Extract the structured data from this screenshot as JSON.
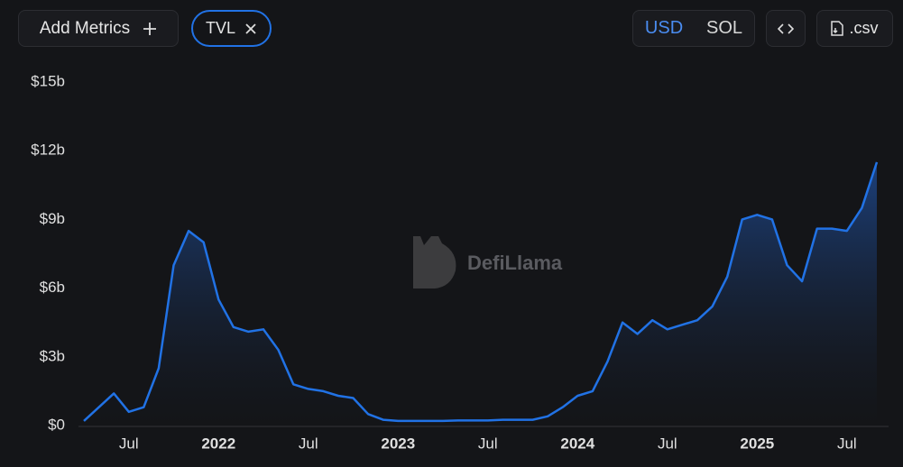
{
  "ui": {
    "add_metrics": "Add Metrics",
    "metric": "TVL",
    "currencies": [
      "USD",
      "SOL"
    ],
    "active_currency": "USD",
    "csv": ".csv"
  },
  "chart_data": {
    "type": "area",
    "watermark": "DefiLlama",
    "color": "#2172e5",
    "x": [
      "2021-04",
      "2021-05",
      "2021-06",
      "2021-07",
      "2021-08",
      "2021-09",
      "2021-10",
      "2021-11",
      "2021-12",
      "2022-01",
      "2022-02",
      "2022-03",
      "2022-04",
      "2022-05",
      "2022-06",
      "2022-07",
      "2022-08",
      "2022-09",
      "2022-10",
      "2022-11",
      "2022-12",
      "2023-01",
      "2023-02",
      "2023-03",
      "2023-04",
      "2023-05",
      "2023-06",
      "2023-07",
      "2023-08",
      "2023-09",
      "2023-10",
      "2023-11",
      "2023-12",
      "2024-01",
      "2024-02",
      "2024-03",
      "2024-04",
      "2024-05",
      "2024-06",
      "2024-07",
      "2024-08",
      "2024-09",
      "2024-10",
      "2024-11",
      "2024-12",
      "2025-01",
      "2025-02",
      "2025-03",
      "2025-04",
      "2025-05",
      "2025-06",
      "2025-07",
      "2025-08",
      "2025-09"
    ],
    "values": [
      0.2,
      0.8,
      1.4,
      0.6,
      0.8,
      2.5,
      7.0,
      8.5,
      8.0,
      5.5,
      4.3,
      4.1,
      4.2,
      3.3,
      1.8,
      1.6,
      1.5,
      1.3,
      1.2,
      0.5,
      0.25,
      0.2,
      0.2,
      0.2,
      0.2,
      0.22,
      0.22,
      0.22,
      0.25,
      0.25,
      0.25,
      0.4,
      0.8,
      1.3,
      1.5,
      2.8,
      4.5,
      4.0,
      4.6,
      4.2,
      4.4,
      4.6,
      5.2,
      6.5,
      9.0,
      9.2,
      9.0,
      7.0,
      6.3,
      8.6,
      8.6,
      8.5,
      9.5,
      11.5
    ],
    "xlim": [
      "2021-04",
      "2025-09"
    ],
    "xticks": [
      {
        "value": "2021-07",
        "label": "Jul"
      },
      {
        "value": "2022-01",
        "label": "2022"
      },
      {
        "value": "2022-07",
        "label": "Jul"
      },
      {
        "value": "2023-01",
        "label": "2023"
      },
      {
        "value": "2023-07",
        "label": "Jul"
      },
      {
        "value": "2024-01",
        "label": "2024"
      },
      {
        "value": "2024-07",
        "label": "Jul"
      },
      {
        "value": "2025-01",
        "label": "2025"
      },
      {
        "value": "2025-07",
        "label": "Jul"
      }
    ],
    "ylim": [
      0,
      15
    ],
    "yticks": [
      {
        "value": 0,
        "label": "$0"
      },
      {
        "value": 3,
        "label": "$3b"
      },
      {
        "value": 6,
        "label": "$6b"
      },
      {
        "value": 9,
        "label": "$9b"
      },
      {
        "value": 12,
        "label": "$12b"
      },
      {
        "value": 15,
        "label": "$15b"
      }
    ],
    "grid": false
  }
}
